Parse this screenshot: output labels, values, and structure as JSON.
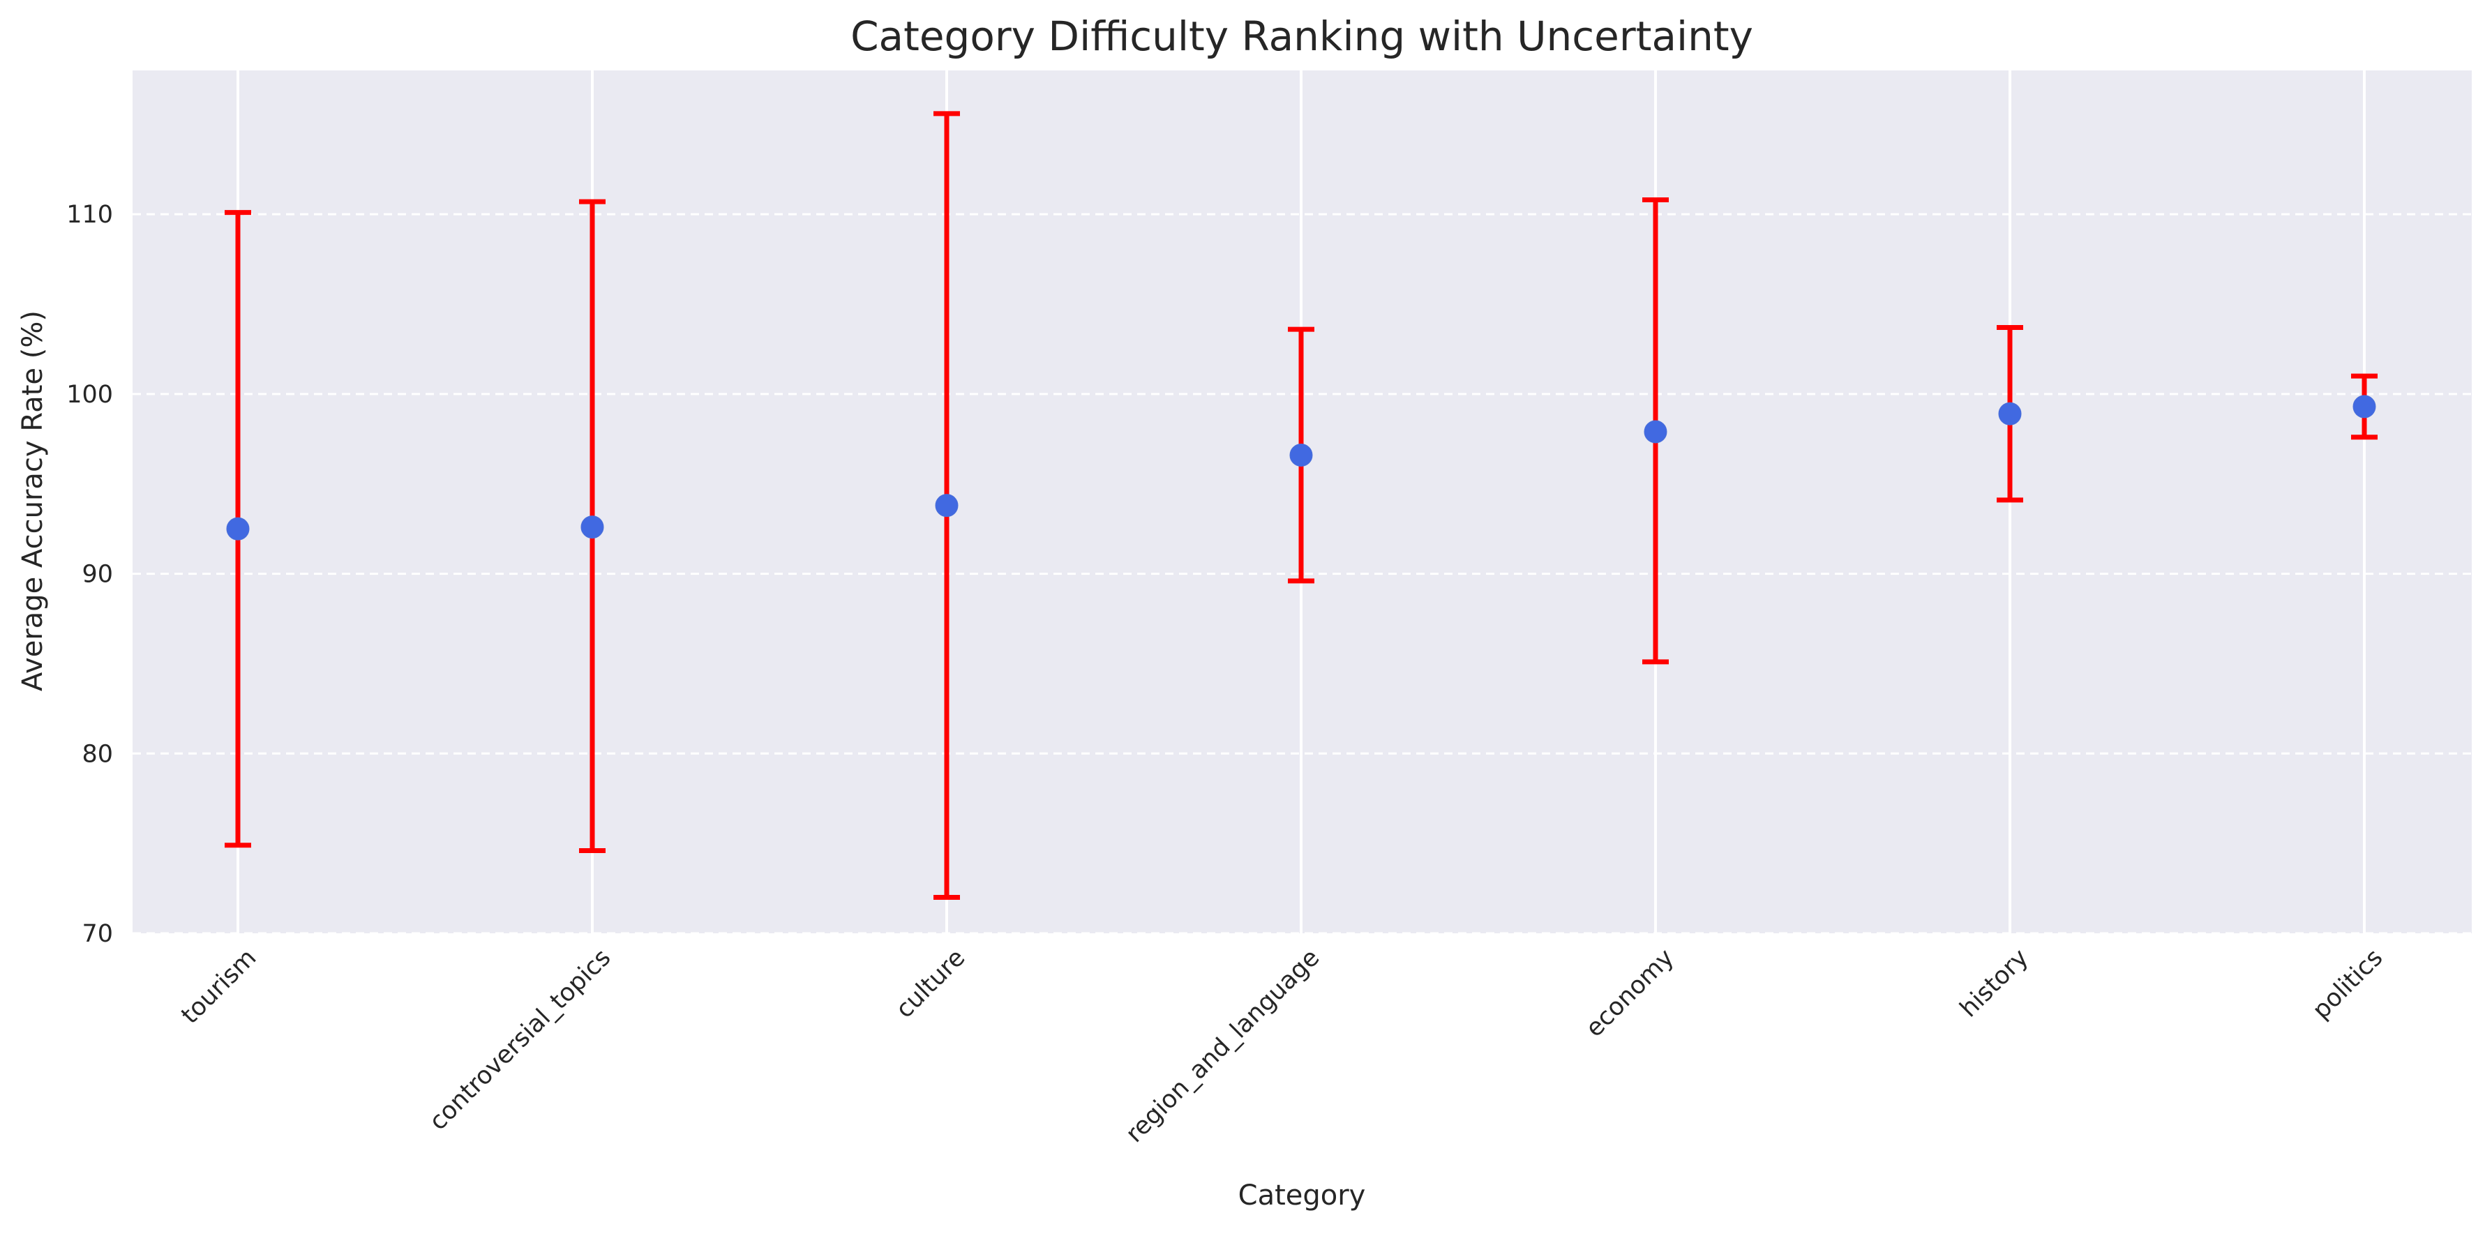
{
  "chart_data": {
    "type": "errorbar",
    "title": "Category Difficulty Ranking with Uncertainty",
    "xlabel": "Category",
    "ylabel": "Average Accuracy Rate (%)",
    "ylim": [
      70,
      118
    ],
    "yticks": [
      70,
      80,
      90,
      100,
      110
    ],
    "grid": "on",
    "categories": [
      "tourism",
      "controversial_topics",
      "culture",
      "region_and_language",
      "economy",
      "history",
      "politics"
    ],
    "values": [
      92.5,
      92.6,
      93.8,
      96.6,
      97.9,
      98.9,
      99.3
    ],
    "error_low": [
      74.9,
      74.6,
      72.0,
      89.6,
      85.1,
      94.1,
      97.6
    ],
    "error_high": [
      110.1,
      110.7,
      115.6,
      103.6,
      110.8,
      103.7,
      101.0
    ],
    "colors": {
      "point": "#4169e1",
      "errorbar": "#ff0000",
      "plot_background": "#eaeaf2",
      "grid": "#ffffff"
    }
  }
}
